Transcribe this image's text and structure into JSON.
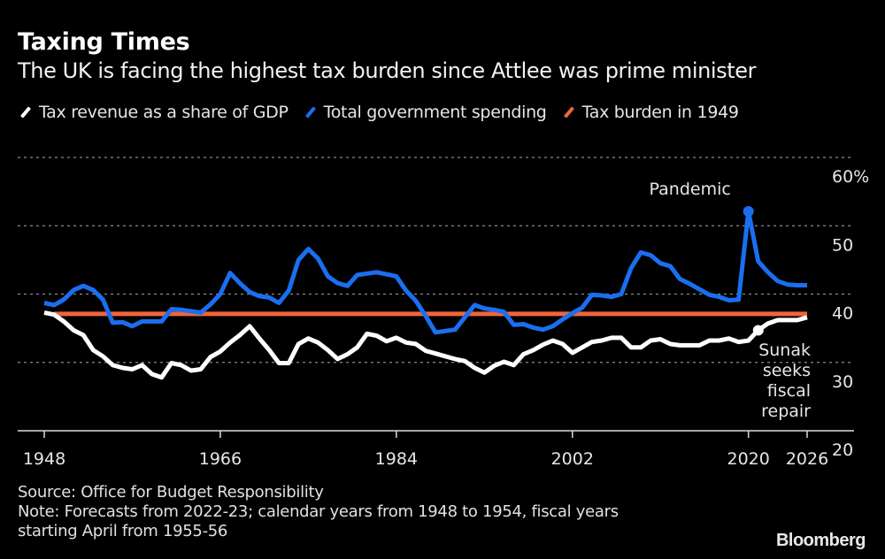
{
  "header": {
    "title": "Taxing Times",
    "subtitle": "The UK is facing the highest tax burden since Attlee was prime minister"
  },
  "footer": {
    "source": "Source: Office for Budget Responsibility",
    "note_line1": "Note: Forecasts from 2022-23; calendar years from 1948 to 1954, fiscal years",
    "note_line2": "starting April from 1955-56",
    "logo": "Bloomberg"
  },
  "chart_data": {
    "type": "line",
    "title": "Taxing Times",
    "subtitle": "The UK is facing the highest tax burden since Attlee was prime minister",
    "xlim": [
      1948,
      2026
    ],
    "ylim": [
      20,
      60
    ],
    "y_unit": "%",
    "xticks": [
      "1948",
      "1966",
      "1984",
      "2002",
      "2020",
      "2026"
    ],
    "yticks": [
      "20",
      "30",
      "40",
      "50",
      "60%"
    ],
    "grid": "horizontal dotted",
    "legend_placement": "top",
    "x_start": 1948,
    "series": [
      {
        "name": "Tax revenue as a share of GDP",
        "color": "#ffffff",
        "values": [
          37.3,
          37.0,
          36.0,
          34.7,
          34.0,
          31.8,
          30.9,
          29.6,
          29.2,
          29.0,
          29.6,
          28.3,
          27.8,
          29.9,
          29.6,
          28.8,
          29.0,
          30.8,
          31.6,
          32.9,
          34.0,
          35.3,
          33.5,
          31.8,
          29.9,
          29.9,
          32.7,
          33.5,
          32.9,
          31.8,
          30.5,
          31.2,
          32.2,
          34.2,
          33.9,
          33.1,
          33.6,
          32.9,
          32.7,
          31.7,
          31.3,
          30.9,
          30.5,
          30.2,
          29.2,
          28.5,
          29.5,
          30.1,
          29.6,
          31.2,
          31.8,
          32.6,
          33.2,
          32.7,
          31.4,
          32.2,
          33.0,
          33.2,
          33.6,
          33.6,
          32.2,
          32.2,
          33.2,
          33.4,
          32.7,
          32.5,
          32.5,
          32.5,
          33.2,
          33.2,
          33.5,
          33.0,
          33.2,
          34.7,
          35.7,
          36.2,
          36.2,
          36.2,
          36.6
        ]
      },
      {
        "name": "Total government spending",
        "color": "#1a6ff0",
        "values": [
          38.7,
          38.4,
          39.2,
          40.6,
          41.2,
          40.6,
          39.2,
          35.8,
          35.9,
          35.3,
          36.0,
          36.0,
          36.0,
          37.8,
          37.7,
          37.5,
          37.3,
          38.5,
          40.0,
          43.1,
          41.6,
          40.3,
          39.7,
          39.5,
          38.7,
          40.5,
          45.0,
          46.6,
          45.2,
          42.6,
          41.6,
          41.2,
          42.8,
          43.0,
          43.2,
          42.9,
          42.6,
          40.5,
          39.0,
          36.8,
          34.4,
          34.6,
          34.8,
          36.6,
          38.4,
          37.9,
          37.7,
          37.4,
          35.5,
          35.6,
          35.1,
          34.8,
          35.3,
          36.3,
          37.2,
          38.0,
          39.9,
          39.8,
          39.6,
          40.0,
          43.8,
          46.1,
          45.7,
          44.5,
          44.1,
          42.2,
          41.5,
          40.7,
          39.9,
          39.6,
          39.1,
          39.2,
          52.1,
          44.8,
          43.2,
          41.9,
          41.4,
          41.3,
          41.3
        ]
      },
      {
        "name": "Tax burden in 1949",
        "color": "#f0643c",
        "x_range": [
          1949,
          2026
        ],
        "value": 37.1
      }
    ],
    "annotations": [
      {
        "text": "Pandemic",
        "x": 2020,
        "series": "Total government spending"
      },
      {
        "text_lines": [
          "Sunak",
          "seeks",
          "fiscal",
          "repair"
        ],
        "x": 2021,
        "series": "Tax revenue as a share of GDP"
      }
    ]
  }
}
